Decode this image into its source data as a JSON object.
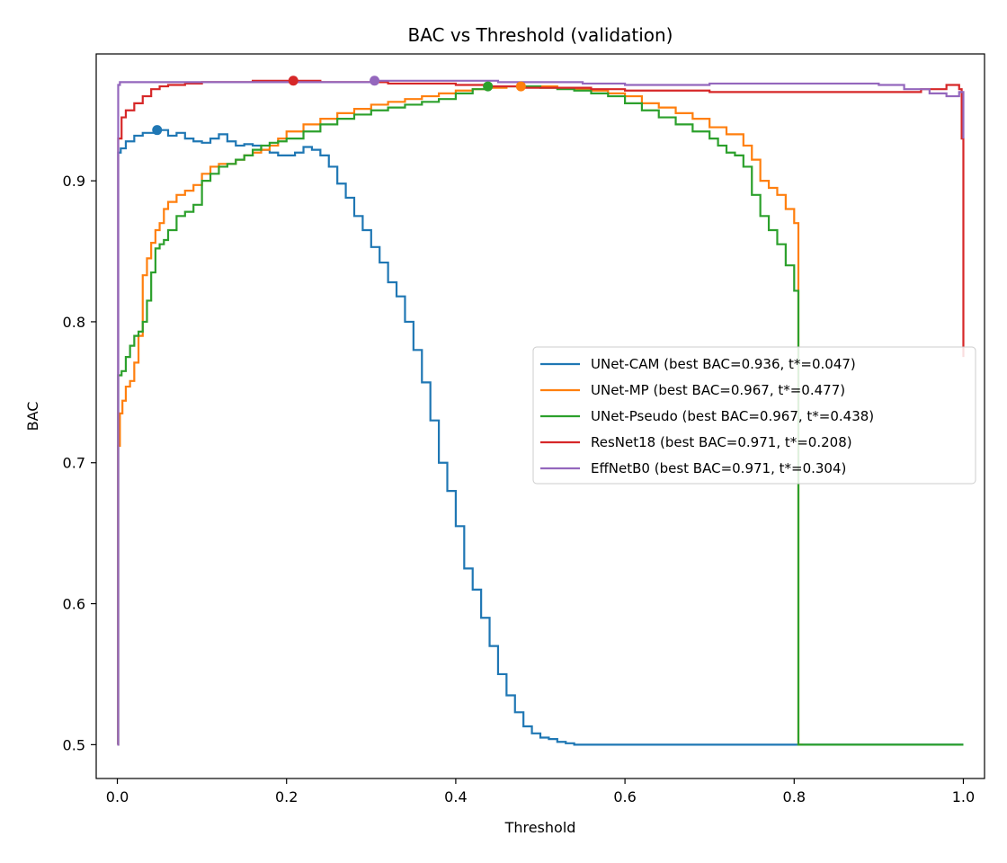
{
  "chart_data": {
    "type": "line",
    "title": "BAC vs Threshold (validation)",
    "xlabel": "Threshold",
    "ylabel": "BAC",
    "xlim": [
      -0.025,
      1.025
    ],
    "ylim": [
      0.476,
      0.99
    ],
    "xticks": [
      0.0,
      0.2,
      0.4,
      0.6,
      0.8,
      1.0
    ],
    "xtick_labels": [
      "0.0",
      "0.2",
      "0.4",
      "0.6",
      "0.8",
      "1.0"
    ],
    "yticks": [
      0.5,
      0.6,
      0.7,
      0.8,
      0.9
    ],
    "ytick_labels": [
      "0.5",
      "0.6",
      "0.7",
      "0.8",
      "0.9"
    ],
    "grid": false,
    "legend_position": "center-right",
    "series": [
      {
        "name": "UNet-CAM",
        "legend_label": "UNet-CAM (best BAC=0.936, t*=0.047)",
        "color": "#1f77b4",
        "best": {
          "x": 0.047,
          "y": 0.936
        },
        "x": [
          0.0,
          0.001,
          0.004,
          0.01,
          0.02,
          0.03,
          0.047,
          0.06,
          0.07,
          0.08,
          0.09,
          0.1,
          0.11,
          0.12,
          0.13,
          0.14,
          0.15,
          0.16,
          0.17,
          0.18,
          0.19,
          0.2,
          0.21,
          0.22,
          0.23,
          0.24,
          0.25,
          0.26,
          0.27,
          0.28,
          0.29,
          0.3,
          0.31,
          0.32,
          0.33,
          0.34,
          0.35,
          0.36,
          0.37,
          0.38,
          0.39,
          0.4,
          0.41,
          0.42,
          0.43,
          0.44,
          0.45,
          0.46,
          0.47,
          0.48,
          0.49,
          0.5,
          0.51,
          0.52,
          0.53,
          0.54,
          0.55,
          0.56,
          0.6,
          0.7,
          0.8,
          0.9,
          1.0
        ],
        "y": [
          0.5,
          0.92,
          0.923,
          0.928,
          0.932,
          0.934,
          0.936,
          0.932,
          0.934,
          0.93,
          0.928,
          0.927,
          0.93,
          0.933,
          0.928,
          0.925,
          0.926,
          0.925,
          0.922,
          0.92,
          0.918,
          0.918,
          0.92,
          0.924,
          0.922,
          0.918,
          0.91,
          0.898,
          0.888,
          0.875,
          0.865,
          0.853,
          0.842,
          0.828,
          0.818,
          0.8,
          0.78,
          0.757,
          0.73,
          0.7,
          0.68,
          0.655,
          0.625,
          0.61,
          0.59,
          0.57,
          0.55,
          0.535,
          0.523,
          0.513,
          0.508,
          0.505,
          0.504,
          0.502,
          0.501,
          0.5,
          0.5,
          0.5,
          0.5,
          0.5,
          0.5,
          0.5,
          0.5
        ]
      },
      {
        "name": "UNet-MP",
        "legend_label": "UNet-MP (best BAC=0.967, t*=0.477)",
        "color": "#ff7f0e",
        "best": {
          "x": 0.477,
          "y": 0.967
        },
        "x": [
          0.0,
          0.001,
          0.003,
          0.006,
          0.01,
          0.015,
          0.02,
          0.025,
          0.03,
          0.035,
          0.04,
          0.045,
          0.05,
          0.055,
          0.06,
          0.07,
          0.08,
          0.09,
          0.1,
          0.11,
          0.12,
          0.13,
          0.14,
          0.15,
          0.16,
          0.17,
          0.18,
          0.19,
          0.2,
          0.22,
          0.24,
          0.26,
          0.28,
          0.3,
          0.32,
          0.34,
          0.36,
          0.38,
          0.4,
          0.42,
          0.44,
          0.46,
          0.477,
          0.5,
          0.52,
          0.54,
          0.56,
          0.58,
          0.6,
          0.62,
          0.64,
          0.66,
          0.68,
          0.7,
          0.72,
          0.74,
          0.75,
          0.76,
          0.77,
          0.78,
          0.79,
          0.8,
          0.805,
          0.81
        ],
        "y": [
          0.5,
          0.712,
          0.735,
          0.744,
          0.754,
          0.758,
          0.771,
          0.79,
          0.833,
          0.845,
          0.856,
          0.865,
          0.87,
          0.88,
          0.885,
          0.89,
          0.893,
          0.897,
          0.905,
          0.91,
          0.912,
          0.912,
          0.915,
          0.918,
          0.92,
          0.922,
          0.925,
          0.93,
          0.935,
          0.94,
          0.944,
          0.948,
          0.951,
          0.954,
          0.956,
          0.958,
          0.96,
          0.962,
          0.964,
          0.965,
          0.966,
          0.967,
          0.967,
          0.967,
          0.966,
          0.965,
          0.964,
          0.962,
          0.96,
          0.955,
          0.952,
          0.948,
          0.944,
          0.938,
          0.933,
          0.925,
          0.915,
          0.9,
          0.895,
          0.89,
          0.88,
          0.87,
          0.5,
          0.5
        ]
      },
      {
        "name": "UNet-Pseudo",
        "legend_label": "UNet-Pseudo (best BAC=0.967, t*=0.438)",
        "color": "#2ca02c",
        "best": {
          "x": 0.438,
          "y": 0.967
        },
        "x": [
          0.0,
          0.001,
          0.005,
          0.01,
          0.015,
          0.02,
          0.025,
          0.03,
          0.035,
          0.04,
          0.045,
          0.05,
          0.055,
          0.06,
          0.07,
          0.08,
          0.09,
          0.1,
          0.11,
          0.12,
          0.13,
          0.14,
          0.15,
          0.16,
          0.17,
          0.18,
          0.19,
          0.2,
          0.22,
          0.24,
          0.26,
          0.28,
          0.3,
          0.32,
          0.34,
          0.36,
          0.38,
          0.4,
          0.42,
          0.438,
          0.46,
          0.48,
          0.5,
          0.52,
          0.54,
          0.56,
          0.58,
          0.6,
          0.62,
          0.64,
          0.66,
          0.68,
          0.7,
          0.71,
          0.72,
          0.73,
          0.74,
          0.75,
          0.76,
          0.77,
          0.78,
          0.79,
          0.8,
          0.805,
          0.85,
          0.9,
          0.95,
          1.0
        ],
        "y": [
          0.5,
          0.762,
          0.765,
          0.775,
          0.783,
          0.79,
          0.793,
          0.8,
          0.815,
          0.835,
          0.852,
          0.855,
          0.858,
          0.865,
          0.875,
          0.878,
          0.883,
          0.9,
          0.905,
          0.91,
          0.912,
          0.915,
          0.918,
          0.922,
          0.925,
          0.927,
          0.928,
          0.93,
          0.935,
          0.94,
          0.944,
          0.947,
          0.95,
          0.952,
          0.954,
          0.956,
          0.958,
          0.962,
          0.965,
          0.967,
          0.967,
          0.967,
          0.966,
          0.965,
          0.964,
          0.962,
          0.96,
          0.955,
          0.95,
          0.945,
          0.94,
          0.935,
          0.93,
          0.925,
          0.92,
          0.918,
          0.91,
          0.89,
          0.875,
          0.865,
          0.855,
          0.84,
          0.822,
          0.5,
          0.5,
          0.5,
          0.5,
          0.5
        ]
      },
      {
        "name": "ResNet18",
        "legend_label": "ResNet18 (best BAC=0.971, t*=0.208)",
        "color": "#d62728",
        "best": {
          "x": 0.208,
          "y": 0.971
        },
        "x": [
          0.0,
          0.001,
          0.005,
          0.01,
          0.02,
          0.03,
          0.04,
          0.05,
          0.06,
          0.08,
          0.1,
          0.12,
          0.14,
          0.16,
          0.18,
          0.208,
          0.24,
          0.28,
          0.32,
          0.36,
          0.4,
          0.44,
          0.48,
          0.52,
          0.56,
          0.6,
          0.65,
          0.7,
          0.75,
          0.8,
          0.85,
          0.9,
          0.95,
          0.98,
          0.995,
          0.998,
          1.0
        ],
        "y": [
          0.5,
          0.93,
          0.945,
          0.95,
          0.955,
          0.96,
          0.965,
          0.967,
          0.968,
          0.969,
          0.97,
          0.97,
          0.97,
          0.971,
          0.971,
          0.971,
          0.97,
          0.97,
          0.969,
          0.969,
          0.968,
          0.967,
          0.966,
          0.966,
          0.965,
          0.964,
          0.964,
          0.963,
          0.963,
          0.963,
          0.963,
          0.963,
          0.965,
          0.968,
          0.965,
          0.93,
          0.775
        ]
      },
      {
        "name": "EffNetB0",
        "legend_label": "EffNetB0 (best BAC=0.971, t*=0.304)",
        "color": "#9467bd",
        "best": {
          "x": 0.304,
          "y": 0.971
        },
        "x": [
          0.0,
          0.001,
          0.003,
          0.01,
          0.05,
          0.1,
          0.15,
          0.2,
          0.25,
          0.304,
          0.35,
          0.4,
          0.45,
          0.5,
          0.55,
          0.6,
          0.65,
          0.7,
          0.75,
          0.8,
          0.85,
          0.9,
          0.93,
          0.96,
          0.98,
          0.995,
          1.0
        ],
        "y": [
          0.5,
          0.968,
          0.97,
          0.97,
          0.97,
          0.97,
          0.97,
          0.97,
          0.97,
          0.971,
          0.971,
          0.971,
          0.97,
          0.97,
          0.969,
          0.968,
          0.968,
          0.969,
          0.969,
          0.969,
          0.969,
          0.968,
          0.965,
          0.962,
          0.96,
          0.963,
          0.93
        ]
      }
    ]
  }
}
